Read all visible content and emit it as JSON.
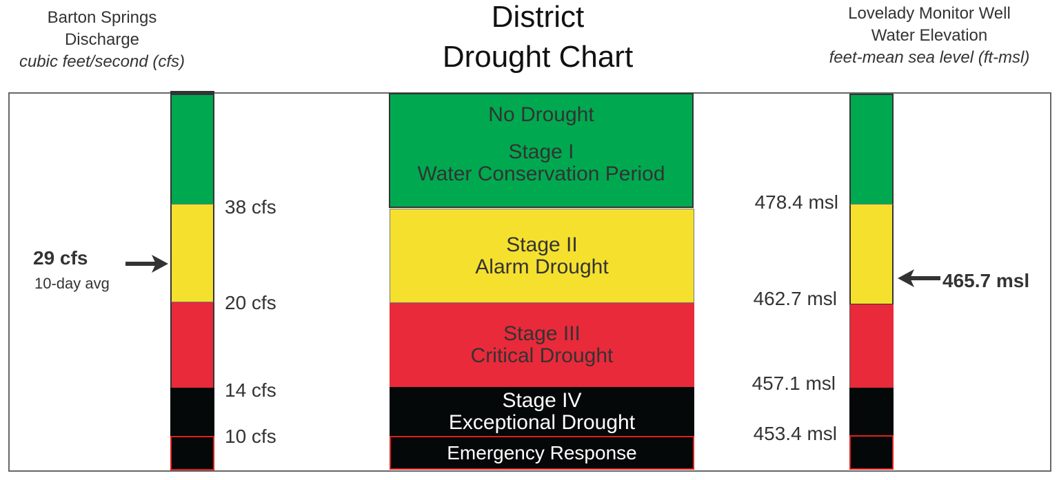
{
  "title": [
    "District",
    "Drought Chart"
  ],
  "left_header": {
    "line1": "Barton Springs",
    "line2": "Discharge",
    "unit": "cubic feet/second (cfs)"
  },
  "right_header": {
    "line1": "Lovelady Monitor Well",
    "line2": "Water Elevation",
    "unit": "feet-mean sea level (ft-msl)"
  },
  "colors": {
    "green": "#00a94f",
    "yellow": "#f5e02e",
    "red": "#e92a3a",
    "black": "#050808",
    "emergency_border": "#e02020"
  },
  "stages": [
    {
      "lines": [
        "No Drought"
      ],
      "color": "green"
    },
    {
      "lines": [
        "Stage I",
        "Water Conservation Period"
      ],
      "color": "green"
    },
    {
      "lines": [
        "Stage II",
        "Alarm Drought"
      ],
      "color": "yellow"
    },
    {
      "lines": [
        "Stage III",
        "Critical Drought"
      ],
      "color": "red"
    },
    {
      "lines": [
        "Stage IV",
        "Exceptional Drought"
      ],
      "color": "black"
    },
    {
      "lines": [
        "Emergency Response"
      ],
      "color": "black"
    }
  ],
  "discharge_thresholds": [
    "38 cfs",
    "20 cfs",
    "14 cfs",
    "10 cfs"
  ],
  "elevation_thresholds": [
    "478.4 msl",
    "462.7 msl",
    "457.1 msl",
    "453.4 msl"
  ],
  "current_discharge": {
    "value": "29 cfs",
    "note": "10-day avg"
  },
  "current_elevation": {
    "value": "465.7 msl"
  }
}
